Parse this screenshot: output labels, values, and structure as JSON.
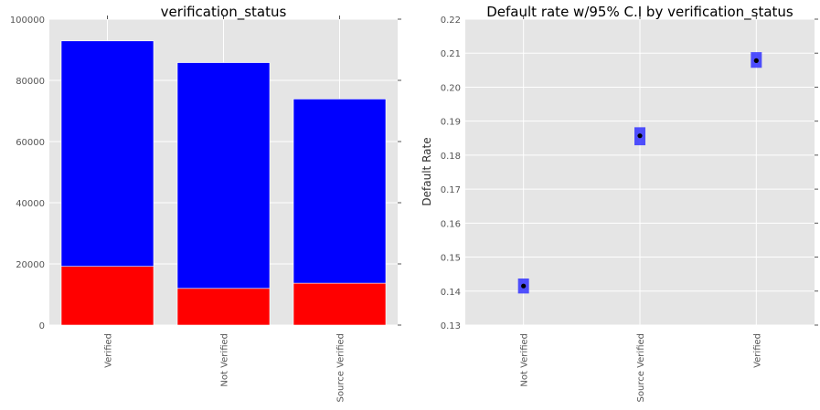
{
  "chart_data": [
    {
      "type": "bar",
      "title": "verification_status",
      "xlabel": "",
      "ylabel": "",
      "categories": [
        "Verified",
        "Not Verified",
        "Source Verified"
      ],
      "stacked": true,
      "series": [
        {
          "color": "#ff0000",
          "values": [
            19200,
            12000,
            13700
          ]
        },
        {
          "color": "#0000ff",
          "values": [
            73700,
            73800,
            60200
          ]
        }
      ],
      "totals": [
        92900,
        85800,
        73900
      ],
      "ylim": [
        0,
        100000
      ],
      "yticks": [
        "0",
        "20000",
        "40000",
        "60000",
        "80000",
        "100000"
      ],
      "grid": true
    },
    {
      "type": "scatter",
      "title": "Default rate w/95% C.I by verification_status",
      "xlabel": "",
      "ylabel": "Default Rate",
      "categories": [
        "Not Verified",
        "Source Verified",
        "Verified"
      ],
      "points": [
        {
          "category": "Not Verified",
          "value": 0.1415,
          "ci": [
            0.1393,
            0.1437
          ]
        },
        {
          "category": "Source Verified",
          "value": 0.1857,
          "ci": [
            0.1829,
            0.1882
          ]
        },
        {
          "category": "Verified",
          "value": 0.2078,
          "ci": [
            0.2057,
            0.2103
          ]
        }
      ],
      "ylim": [
        0.13,
        0.22
      ],
      "yticks": [
        "0.13",
        "0.14",
        "0.15",
        "0.16",
        "0.17",
        "0.18",
        "0.19",
        "0.20",
        "0.21",
        "0.22"
      ],
      "ci_color": "#3333ff",
      "point_color": "#000000",
      "grid": true
    }
  ]
}
